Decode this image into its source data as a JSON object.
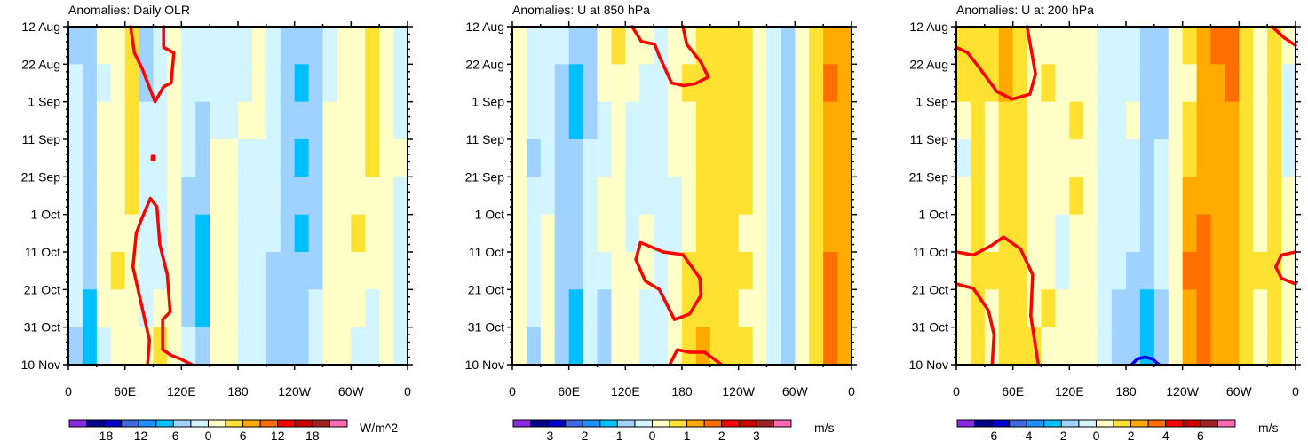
{
  "palette": [
    "#8a2be2",
    "#00008b",
    "#0000cd",
    "#4169e1",
    "#1e90ff",
    "#00bfff",
    "#a0d2ff",
    "#d2f5ff",
    "#ffffc8",
    "#ffe132",
    "#ffaa00",
    "#ff6e00",
    "#ff0000",
    "#c80000",
    "#a02323",
    "#ff69b4"
  ],
  "time_axis": {
    "labels": [
      "12 Aug",
      "22 Aug",
      "1 Sep",
      "11 Sep",
      "21 Sep",
      "1 Oct",
      "11 Oct",
      "21 Oct",
      "31 Oct",
      "10 Nov"
    ],
    "days": [
      0,
      10,
      20,
      30,
      40,
      50,
      60,
      70,
      80,
      90
    ]
  },
  "lon_axis": {
    "labels": [
      "0",
      "60E",
      "120E",
      "180",
      "120W",
      "60W",
      "0"
    ],
    "values": [
      0,
      60,
      120,
      180,
      240,
      300,
      360
    ]
  },
  "chart_data": [
    {
      "type": "heatmap",
      "title": "Anomalies: Daily OLR",
      "units": "W/m^2",
      "level_min": -21,
      "level_step": 3,
      "colorbar_labels": [
        "-18",
        "-12",
        "-6",
        "0",
        "6",
        "12",
        "18"
      ],
      "colorbar_label_values": [
        -18,
        -12,
        -6,
        0,
        6,
        12,
        18
      ],
      "lon_step": 15,
      "day_step": 10,
      "values": [
        [
          -4,
          -4,
          1,
          1,
          4,
          -4,
          -1,
          1,
          -1,
          -1,
          -1,
          -1,
          -1,
          1,
          -1,
          -4,
          -4,
          -4,
          -1,
          1,
          1,
          4,
          1,
          -1
        ],
        [
          -2,
          -4,
          -1,
          1,
          4,
          -4,
          -1,
          1,
          -1,
          -1,
          -1,
          -1,
          -1,
          1,
          -1,
          -4,
          -7,
          -4,
          -1,
          1,
          1,
          4,
          1,
          -1
        ],
        [
          -2,
          -4,
          1,
          1,
          4,
          -1,
          -1,
          1,
          -1,
          -4,
          -1,
          -1,
          1,
          1,
          -1,
          -4,
          -4,
          -4,
          1,
          1,
          1,
          4,
          1,
          -1
        ],
        [
          -1,
          -4,
          1,
          1,
          4,
          -1,
          -1,
          1,
          -1,
          -4,
          1,
          1,
          -1,
          -1,
          -1,
          -4,
          -7,
          -4,
          1,
          1,
          1,
          4,
          1,
          1
        ],
        [
          -1,
          -4,
          1,
          1,
          4,
          -1,
          -1,
          1,
          -4,
          -4,
          1,
          1,
          -1,
          -1,
          -1,
          -4,
          -4,
          -4,
          1,
          1,
          1,
          1,
          1,
          -1
        ],
        [
          -1,
          -4,
          1,
          1,
          1,
          -1,
          -1,
          1,
          -4,
          -7,
          1,
          1,
          -1,
          -1,
          -1,
          -4,
          -7,
          -4,
          1,
          1,
          4,
          1,
          1,
          -1
        ],
        [
          -2,
          -4,
          1,
          4,
          1,
          -1,
          -1,
          1,
          -4,
          -7,
          1,
          1,
          -1,
          -1,
          -4,
          -4,
          -4,
          -4,
          1,
          1,
          1,
          1,
          1,
          -1
        ],
        [
          -2,
          -7,
          1,
          1,
          1,
          -1,
          1,
          1,
          -4,
          -7,
          1,
          1,
          -1,
          -1,
          -4,
          -4,
          -4,
          -1,
          1,
          1,
          1,
          -1,
          1,
          -1
        ],
        [
          -4,
          -7,
          -1,
          1,
          1,
          1,
          4,
          1,
          -1,
          -4,
          1,
          1,
          -1,
          -1,
          -4,
          -4,
          -4,
          -1,
          1,
          1,
          -1,
          -1,
          1,
          -1
        ]
      ],
      "contours": [
        {
          "color": "#ff0000",
          "closed": false,
          "points": [
            [
              66,
              0
            ],
            [
              70,
              7
            ],
            [
              78,
              11
            ],
            [
              92,
              20
            ],
            [
              101,
              16
            ],
            [
              109,
              15
            ],
            [
              112,
              7
            ],
            [
              101,
              5.5
            ],
            [
              101,
              0
            ]
          ]
        },
        {
          "color": "#ff0000",
          "closed": true,
          "points": [
            [
              89,
              34.5
            ],
            [
              91,
              34.5
            ],
            [
              91,
              35.5
            ],
            [
              89,
              35.5
            ]
          ]
        },
        {
          "color": "#ff0000",
          "closed": false,
          "points": [
            [
              84,
              90
            ],
            [
              86,
              83.5
            ],
            [
              68.5,
              64
            ],
            [
              72,
              55
            ],
            [
              78,
              51
            ],
            [
              87,
              45.7
            ],
            [
              94,
              48
            ],
            [
              97,
              58
            ],
            [
              105,
              66
            ],
            [
              108,
              76
            ],
            [
              100,
              78
            ],
            [
              100,
              86
            ],
            [
              109,
              87.5
            ],
            [
              119,
              88.5
            ],
            [
              131,
              90
            ]
          ]
        }
      ]
    },
    {
      "type": "heatmap",
      "title": "Anomalies: U at 850 hPa",
      "units": "m/s",
      "level_min": -3.5,
      "level_step": 0.5,
      "colorbar_labels": [
        "-3",
        "-2",
        "-1",
        "0",
        "1",
        "2",
        "3"
      ],
      "colorbar_label_values": [
        -3,
        -2,
        -1,
        0,
        1,
        2,
        3
      ],
      "lon_step": 15,
      "day_step": 10,
      "values": [
        [
          0.2,
          -0.2,
          -0.2,
          -0.2,
          -0.7,
          -0.7,
          0.2,
          0.7,
          0.2,
          0.2,
          -0.2,
          0.2,
          0.2,
          0.7,
          0.7,
          0.7,
          0.7,
          0.2,
          -0.2,
          -0.7,
          0.2,
          0.7,
          1.2,
          1.2
        ],
        [
          0.2,
          -0.2,
          -0.2,
          -0.7,
          -1.2,
          -0.7,
          0.2,
          0.2,
          0.2,
          -0.2,
          -0.2,
          0.2,
          0.7,
          0.7,
          0.7,
          0.7,
          0.7,
          0.2,
          -0.2,
          -0.7,
          0.2,
          0.7,
          1.7,
          1.2
        ],
        [
          0.2,
          -0.2,
          -0.2,
          -0.7,
          -1.2,
          -0.7,
          -0.2,
          0.2,
          -0.2,
          -0.2,
          -0.2,
          0.2,
          0.2,
          0.7,
          0.7,
          0.7,
          0.7,
          0.2,
          -0.2,
          -0.7,
          0.2,
          0.7,
          1.2,
          1.2
        ],
        [
          0.2,
          -0.7,
          -0.2,
          -0.7,
          -0.7,
          -0.2,
          -0.2,
          0.2,
          -0.2,
          -0.2,
          -0.2,
          0.2,
          0.2,
          0.7,
          0.7,
          0.7,
          0.7,
          0.2,
          -0.2,
          -0.7,
          0.2,
          0.7,
          1.2,
          1.2
        ],
        [
          0.2,
          -0.2,
          -0.2,
          -0.7,
          -0.7,
          -0.2,
          0.2,
          0.2,
          -0.2,
          -0.2,
          -0.2,
          -0.2,
          0.2,
          0.7,
          0.7,
          0.7,
          0.7,
          0.2,
          -0.2,
          -0.7,
          0.2,
          0.7,
          1.2,
          1.2
        ],
        [
          0.2,
          -0.2,
          0.2,
          -0.7,
          -0.7,
          -0.2,
          0.2,
          0.2,
          -0.2,
          0.2,
          -0.2,
          -0.2,
          0.2,
          0.7,
          0.7,
          0.7,
          0.2,
          0.2,
          -0.2,
          -0.7,
          0.2,
          0.7,
          1.2,
          1.2
        ],
        [
          0.2,
          -0.2,
          0.2,
          -0.7,
          -0.7,
          -0.2,
          -0.2,
          0.2,
          0.2,
          0.2,
          -0.2,
          0.2,
          0.7,
          0.7,
          0.7,
          0.7,
          0.7,
          0.2,
          -0.2,
          -0.7,
          0.2,
          0.7,
          1.7,
          1.2
        ],
        [
          0.2,
          -0.2,
          0.2,
          -0.7,
          -1.2,
          -0.2,
          -0.7,
          0.2,
          0.2,
          -0.2,
          -0.2,
          0.2,
          0.7,
          0.7,
          0.7,
          0.7,
          0.2,
          0.2,
          -0.2,
          -0.7,
          0.2,
          0.7,
          1.7,
          1.2
        ],
        [
          0.2,
          -0.7,
          0.2,
          -0.7,
          -1.2,
          -0.2,
          -0.7,
          0.2,
          0.2,
          -0.2,
          -0.2,
          0.2,
          0.7,
          1.2,
          0.7,
          0.7,
          0.7,
          0.2,
          -0.2,
          -0.7,
          0.2,
          0.7,
          1.7,
          1.2
        ]
      ],
      "contours": [
        {
          "color": "#ff0000",
          "closed": false,
          "points": [
            [
              127,
              0
            ],
            [
              137,
              4
            ],
            [
              151,
              4.7
            ],
            [
              156,
              7.9
            ],
            [
              169,
              15
            ],
            [
              182,
              15.7
            ],
            [
              194,
              15.2
            ],
            [
              208,
              13.4
            ],
            [
              200,
              9.4
            ],
            [
              185,
              4.7
            ],
            [
              181,
              0
            ]
          ]
        },
        {
          "color": "#ff0000",
          "closed": true,
          "points": [
            [
              136,
              57.5
            ],
            [
              131,
              62
            ],
            [
              141,
              67.7
            ],
            [
              156,
              70
            ],
            [
              172,
              78
            ],
            [
              188,
              76.5
            ],
            [
              200,
              71.6
            ],
            [
              199,
              67
            ],
            [
              181,
              60.7
            ],
            [
              160,
              60
            ],
            [
              144,
              58.3
            ]
          ]
        },
        {
          "color": "#ff0000",
          "closed": false,
          "points": [
            [
              167,
              90
            ],
            [
              175,
              86
            ],
            [
              188,
              86.7
            ],
            [
              204,
              86.7
            ],
            [
              222,
              90
            ]
          ]
        }
      ]
    },
    {
      "type": "heatmap",
      "title": "Anomalies: U at 200 hPa",
      "units": "m/s",
      "level_min": -7,
      "level_step": 1,
      "colorbar_labels": [
        "-6",
        "-4",
        "-2",
        "0",
        "2",
        "4",
        "6"
      ],
      "colorbar_label_values": [
        -6,
        -4,
        -2,
        0,
        2,
        4,
        6
      ],
      "lon_step": 15,
      "day_step": 10,
      "values": [
        [
          1.5,
          1.5,
          1.5,
          2.5,
          1.5,
          0.5,
          0.5,
          0.5,
          0.5,
          0.5,
          -0.5,
          -0.5,
          -0.5,
          -1.5,
          -1.5,
          0.5,
          1.5,
          2.5,
          3.5,
          3.5,
          1.5,
          0.5,
          1.5,
          0.5
        ],
        [
          1.5,
          1.5,
          1.5,
          2.5,
          1.5,
          0.5,
          1.5,
          0.5,
          0.5,
          0.5,
          -0.5,
          -0.5,
          -0.5,
          -1.5,
          -1.5,
          0.5,
          0.5,
          2.5,
          2.5,
          3.5,
          1.5,
          0.5,
          1.5,
          -0.5
        ],
        [
          0.5,
          1.5,
          0.5,
          1.5,
          1.5,
          0.5,
          0.5,
          0.5,
          1.5,
          0.5,
          -0.5,
          -0.5,
          0.5,
          -1.5,
          -1.5,
          0.5,
          1.5,
          2.5,
          2.5,
          2.5,
          1.5,
          0.5,
          1.5,
          -0.5
        ],
        [
          -0.5,
          1.5,
          0.5,
          1.5,
          1.5,
          0.5,
          0.5,
          0.5,
          0.5,
          0.5,
          -0.5,
          -0.5,
          -0.5,
          -1.5,
          -0.5,
          0.5,
          1.5,
          2.5,
          2.5,
          2.5,
          1.5,
          0.5,
          1.5,
          -0.5
        ],
        [
          0.5,
          1.5,
          0.5,
          1.5,
          1.5,
          0.5,
          0.5,
          0.5,
          1.5,
          0.5,
          -0.5,
          -0.5,
          -0.5,
          -1.5,
          -0.5,
          0.5,
          2.5,
          2.5,
          2.5,
          2.5,
          1.5,
          0.5,
          1.5,
          0.5
        ],
        [
          0.5,
          1.5,
          0.5,
          1.5,
          1.5,
          0.5,
          0.5,
          -0.5,
          0.5,
          0.5,
          -0.5,
          -0.5,
          -0.5,
          -1.5,
          -0.5,
          0.5,
          2.5,
          3.5,
          2.5,
          2.5,
          1.5,
          0.5,
          1.5,
          0.5
        ],
        [
          0.5,
          1.5,
          1.5,
          1.5,
          1.5,
          0.5,
          0.5,
          -0.5,
          0.5,
          0.5,
          -0.5,
          -0.5,
          -1.5,
          -1.5,
          -0.5,
          0.5,
          3.5,
          3.5,
          2.5,
          2.5,
          1.5,
          1.5,
          1.5,
          0.5
        ],
        [
          0.5,
          1.5,
          0.5,
          1.5,
          1.5,
          0.5,
          1.5,
          0.5,
          0.5,
          0.5,
          -0.5,
          -1.5,
          -1.5,
          -2.5,
          -1.5,
          0.5,
          2.5,
          3.5,
          2.5,
          2.5,
          1.5,
          0.5,
          1.5,
          0.5
        ],
        [
          0.5,
          1.5,
          0.5,
          1.5,
          1.5,
          1.5,
          0.5,
          0.5,
          0.5,
          0.5,
          -0.5,
          -1.5,
          -1.5,
          -2.5,
          -1.5,
          0.5,
          2.5,
          3.5,
          2.5,
          2.5,
          1.5,
          0.5,
          1.5,
          0.5
        ]
      ],
      "contours": [
        {
          "color": "#ff0000",
          "closed": false,
          "points": [
            [
              0,
              5.5
            ],
            [
              12,
              7
            ],
            [
              24.5,
              11
            ],
            [
              43,
              17.3
            ],
            [
              59,
              19.3
            ],
            [
              78,
              18
            ],
            [
              84,
              12.6
            ],
            [
              75,
              0
            ]
          ]
        },
        {
          "color": "#ff0000",
          "closed": false,
          "points": [
            [
              335,
              0
            ],
            [
              348,
              3
            ],
            [
              360,
              5
            ]
          ]
        },
        {
          "color": "#ff0000",
          "closed": false,
          "points": [
            [
              0,
              60
            ],
            [
              18,
              60.8
            ],
            [
              37,
              58.3
            ],
            [
              50,
              56
            ],
            [
              68,
              59.2
            ],
            [
              81,
              66
            ],
            [
              79,
              77
            ],
            [
              87,
              90
            ]
          ]
        },
        {
          "color": "#ff0000",
          "closed": false,
          "points": [
            [
              0,
              68.5
            ],
            [
              18,
              69.7
            ],
            [
              34,
              75.6
            ],
            [
              40,
              82
            ],
            [
              38,
              90
            ]
          ]
        },
        {
          "color": "#ff0000",
          "closed": false,
          "points": [
            [
              360,
              60
            ],
            [
              345,
              60.8
            ],
            [
              339,
              64
            ],
            [
              345,
              67
            ],
            [
              360,
              68.5
            ]
          ]
        },
        {
          "color": "#0000ff",
          "closed": false,
          "points": [
            [
              186,
              90
            ],
            [
              192,
              88.5
            ],
            [
              200,
              88
            ],
            [
              208,
              88.5
            ],
            [
              215,
              90
            ]
          ]
        }
      ]
    }
  ]
}
